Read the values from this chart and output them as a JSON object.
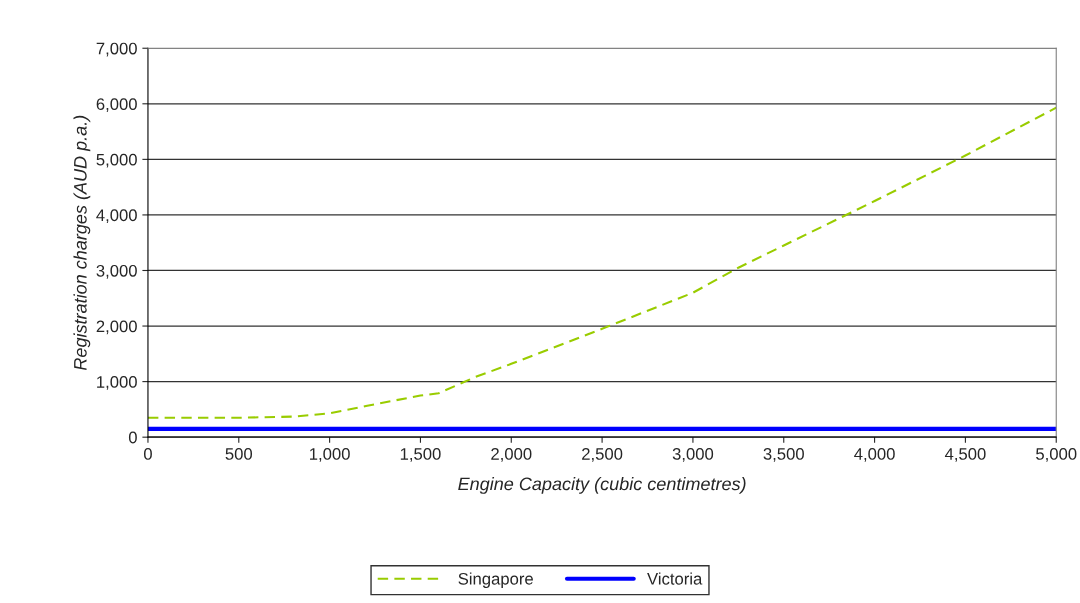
{
  "chart_data": {
    "type": "line",
    "xlabel": "Engine Capacity (cubic centimetres)",
    "ylabel": "Registration charges (AUD p.a.)",
    "x": [
      0,
      500,
      800,
      1000,
      1200,
      1500,
      1600,
      1800,
      2000,
      2500,
      3000,
      3250,
      3500,
      4000,
      4500,
      5000
    ],
    "series": [
      {
        "name": "Singapore",
        "color": "#99cc00",
        "line_style": "dashed",
        "values": [
          350,
          350,
          370,
          430,
          560,
          750,
          790,
          1080,
          1320,
          1950,
          2600,
          3050,
          3450,
          4250,
          5070,
          5930
        ]
      },
      {
        "name": "Victoria",
        "color": "#0000ff",
        "line_style": "solid",
        "values": [
          150,
          150,
          150,
          150,
          150,
          150,
          150,
          150,
          150,
          150,
          150,
          150,
          150,
          150,
          150,
          150
        ]
      }
    ],
    "xlim": [
      0,
      5000
    ],
    "xticks": [
      {
        "value": 0,
        "label": "0"
      },
      {
        "value": 500,
        "label": "500"
      },
      {
        "value": 1000,
        "label": "1,000"
      },
      {
        "value": 1500,
        "label": "1,500"
      },
      {
        "value": 2000,
        "label": "2,000"
      },
      {
        "value": 2500,
        "label": "2,500"
      },
      {
        "value": 3000,
        "label": "3,000"
      },
      {
        "value": 3500,
        "label": "3,500"
      },
      {
        "value": 4000,
        "label": "4,000"
      },
      {
        "value": 4500,
        "label": "4,500"
      },
      {
        "value": 5000,
        "label": "5,000"
      }
    ],
    "ylim": [
      0,
      7000
    ],
    "yticks": [
      {
        "value": 0,
        "label": "0"
      },
      {
        "value": 1000,
        "label": "1,000"
      },
      {
        "value": 2000,
        "label": "2,000"
      },
      {
        "value": 3000,
        "label": "3,000"
      },
      {
        "value": 4000,
        "label": "4,000"
      },
      {
        "value": 5000,
        "label": "5,000"
      },
      {
        "value": 6000,
        "label": "6,000"
      },
      {
        "value": 7000,
        "label": "7,000"
      }
    ],
    "grid": "y",
    "legend": "bottom"
  }
}
